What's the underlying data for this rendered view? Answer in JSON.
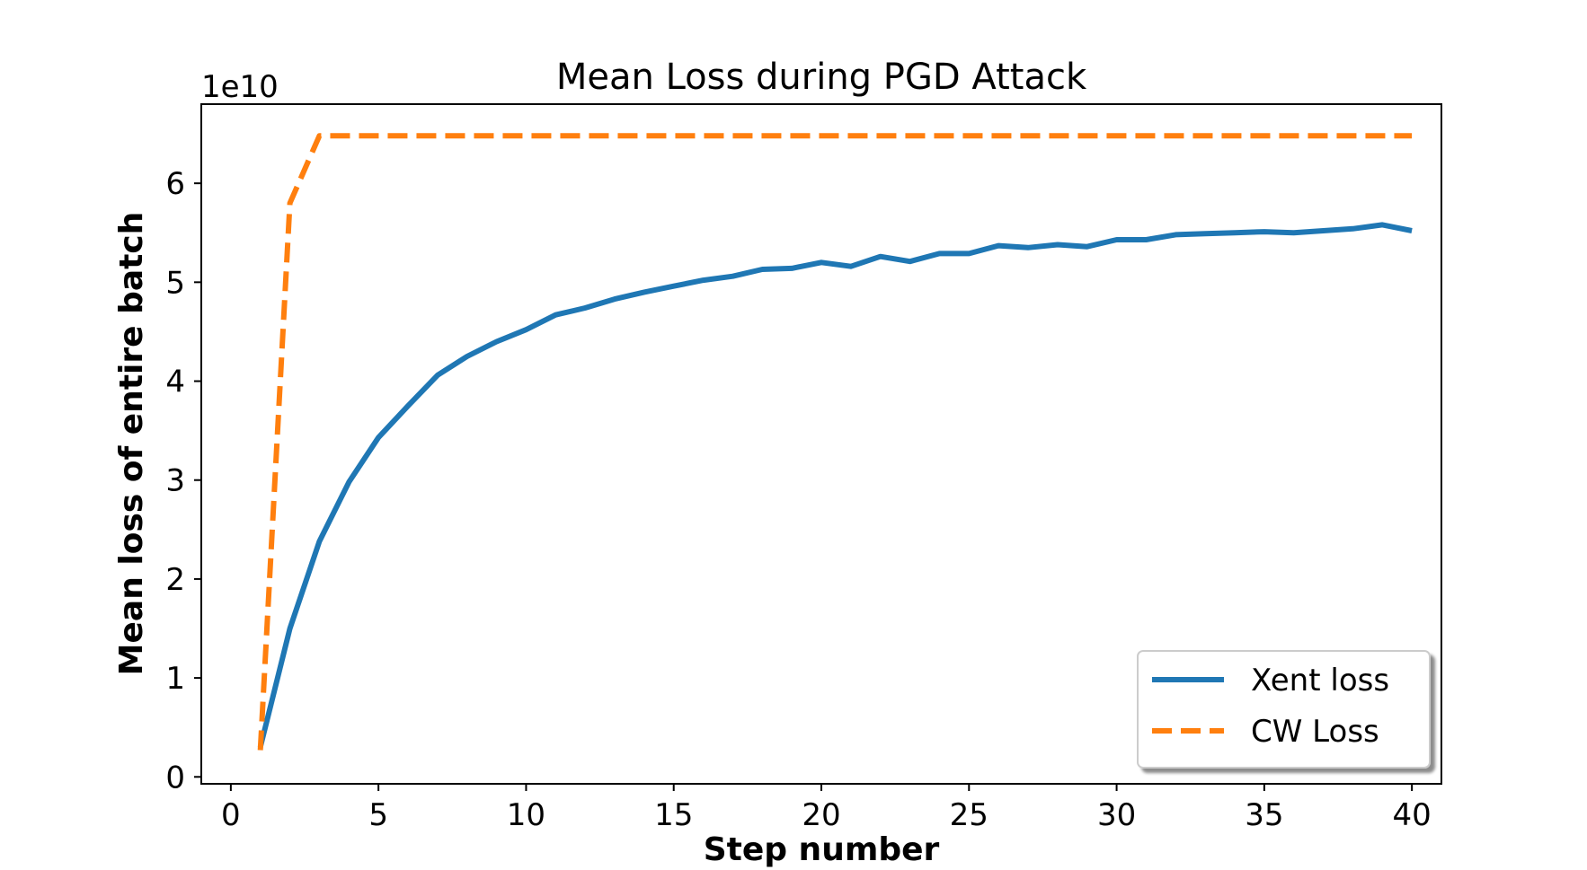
{
  "chart_data": {
    "type": "line",
    "title": "Mean Loss during PGD Attack",
    "xlabel": "Step number",
    "ylabel": "Mean loss of entire batch",
    "y_offset_label": "1e10",
    "xlim": [
      -1,
      41
    ],
    "ylim": [
      -0.07,
      6.8
    ],
    "xticks": [
      0,
      5,
      10,
      15,
      20,
      25,
      30,
      35,
      40
    ],
    "xtick_labels": [
      "0",
      "5",
      "10",
      "15",
      "20",
      "25",
      "30",
      "35",
      "40"
    ],
    "yticks": [
      0,
      1,
      2,
      3,
      4,
      5,
      6
    ],
    "ytick_labels": [
      "0",
      "1",
      "2",
      "3",
      "4",
      "5",
      "6"
    ],
    "grid": false,
    "legend_position": "bottom-right",
    "x": [
      1,
      2,
      3,
      4,
      5,
      6,
      7,
      8,
      9,
      10,
      11,
      12,
      13,
      14,
      15,
      16,
      17,
      18,
      19,
      20,
      21,
      22,
      23,
      24,
      25,
      26,
      27,
      28,
      29,
      30,
      31,
      32,
      33,
      34,
      35,
      36,
      37,
      38,
      39,
      40
    ],
    "series": [
      {
        "name": "Xent loss",
        "color": "#1f77b4",
        "style": "solid",
        "values": [
          0.3,
          1.5,
          2.38,
          2.98,
          3.43,
          3.75,
          4.06,
          4.25,
          4.4,
          4.52,
          4.67,
          4.74,
          4.83,
          4.9,
          4.96,
          5.02,
          5.06,
          5.13,
          5.14,
          5.2,
          5.16,
          5.26,
          5.21,
          5.29,
          5.29,
          5.37,
          5.35,
          5.38,
          5.36,
          5.43,
          5.43,
          5.48,
          5.49,
          5.5,
          5.51,
          5.5,
          5.52,
          5.54,
          5.58,
          5.52
        ]
      },
      {
        "name": "CW Loss",
        "color": "#ff7f0e",
        "style": "dashed",
        "values": [
          0.27,
          5.8,
          6.48,
          6.48,
          6.48,
          6.48,
          6.48,
          6.48,
          6.48,
          6.48,
          6.48,
          6.48,
          6.48,
          6.48,
          6.48,
          6.48,
          6.48,
          6.48,
          6.48,
          6.48,
          6.48,
          6.48,
          6.48,
          6.48,
          6.48,
          6.48,
          6.48,
          6.48,
          6.48,
          6.48,
          6.48,
          6.48,
          6.48,
          6.48,
          6.48,
          6.48,
          6.48,
          6.48,
          6.48,
          6.48
        ]
      }
    ]
  }
}
